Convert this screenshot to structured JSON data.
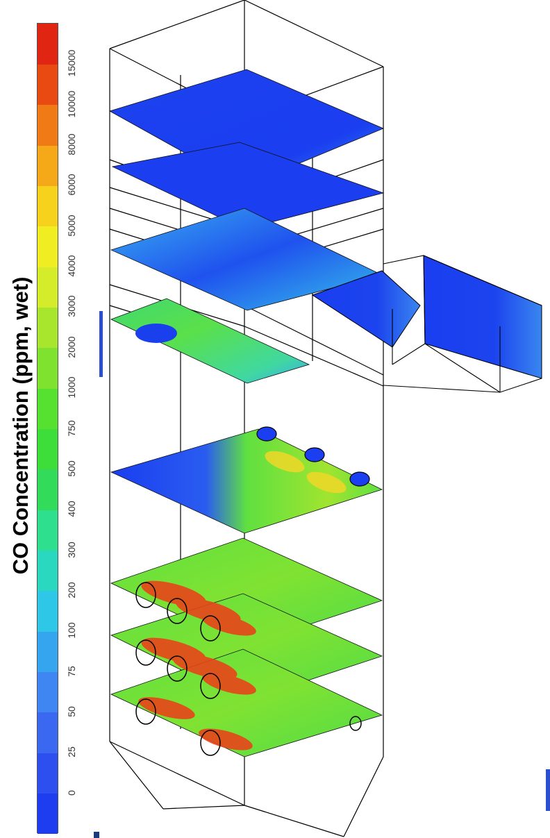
{
  "legend": {
    "title": "CO Concentration (ppm, wet)",
    "levels": [
      "0",
      "25",
      "50",
      "75",
      "100",
      "200",
      "300",
      "400",
      "500",
      "750",
      "1000",
      "2000",
      "3000",
      "4000",
      "5000",
      "6000",
      "8000",
      "10000",
      "15000"
    ],
    "colors": [
      "#1f3df0",
      "#2e4ff0",
      "#3b68f0",
      "#3f86f2",
      "#35a5f0",
      "#2ec7e8",
      "#2ad8c0",
      "#2ee08e",
      "#32dc5a",
      "#3ede3a",
      "#56e030",
      "#7ee22e",
      "#a8e62e",
      "#d4ec2a",
      "#f0ee22",
      "#f6d21c",
      "#f5a818",
      "#f07a16",
      "#e84a12",
      "#e02612"
    ]
  },
  "scene": {
    "object": "boiler",
    "slice_colors": {
      "low": "#1a3ef0",
      "low_mid": "#35b0f0",
      "mid": "#5ae03c",
      "mid_high": "#f0e228",
      "high": "#e8401a"
    }
  }
}
